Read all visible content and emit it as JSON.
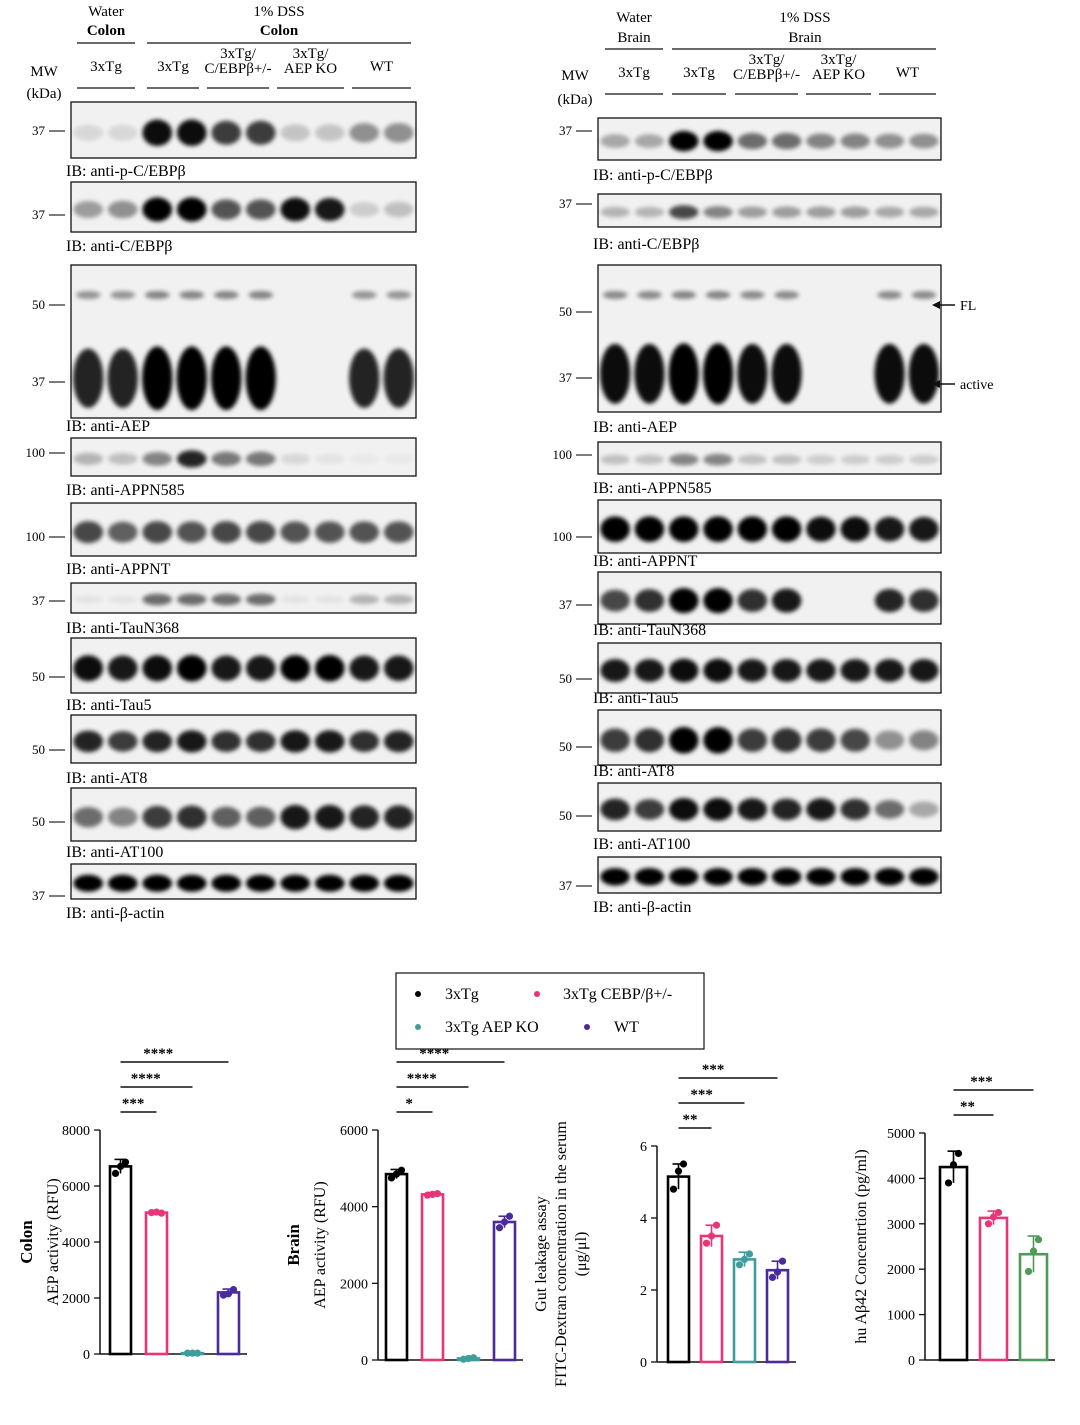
{
  "figure": {
    "colon_panel": {
      "header": {
        "water_label": "Water",
        "water_tissue": "Colon",
        "dss_label": "1% DSS",
        "dss_tissue": "Colon",
        "mw_label": "MW",
        "kda_label": "(kDa)",
        "groups": [
          "3xTg",
          "3xTg",
          "3xTg/\nC/EBPβ+/-",
          "3xTg/\nAEP KO",
          "WT"
        ]
      },
      "blots": [
        {
          "ib": "IB: anti-p-C/EBPβ",
          "markers": [
            "37"
          ],
          "intensities": [
            0.1,
            0.1,
            0.95,
            0.95,
            0.75,
            0.75,
            0.18,
            0.18,
            0.4,
            0.4
          ]
        },
        {
          "ib": "IB: anti-C/EBPβ",
          "markers": [
            "37"
          ],
          "intensities": [
            0.35,
            0.4,
            1.0,
            1.0,
            0.65,
            0.65,
            0.95,
            0.9,
            0.15,
            0.2
          ]
        },
        {
          "ib": "IB: anti-AEP",
          "markers": [
            "50",
            "37"
          ],
          "intensities": [
            0.85,
            0.85,
            1.0,
            1.0,
            1.0,
            1.0,
            0.0,
            0.0,
            0.85,
            0.85
          ]
        },
        {
          "ib": "IB: anti-APPN585",
          "markers": [
            "100"
          ],
          "intensities": [
            0.25,
            0.2,
            0.45,
            0.85,
            0.5,
            0.5,
            0.1,
            0.05,
            0.03,
            0.03
          ]
        },
        {
          "ib": "IB: anti-APPNT",
          "markers": [
            "100"
          ],
          "intensities": [
            0.7,
            0.6,
            0.7,
            0.65,
            0.7,
            0.7,
            0.65,
            0.65,
            0.65,
            0.65
          ]
        },
        {
          "ib": "IB: anti-TauN368",
          "markers": [
            "37"
          ],
          "intensities": [
            0.05,
            0.05,
            0.55,
            0.55,
            0.55,
            0.55,
            0.05,
            0.05,
            0.25,
            0.25
          ]
        },
        {
          "ib": "IB: anti-Tau5",
          "markers": [
            "50"
          ],
          "intensities": [
            0.95,
            0.9,
            0.95,
            1.0,
            0.9,
            0.9,
            1.0,
            1.0,
            0.9,
            0.9
          ]
        },
        {
          "ib": "IB: anti-AT8",
          "markers": [
            "50"
          ],
          "intensities": [
            0.85,
            0.75,
            0.85,
            0.9,
            0.8,
            0.8,
            0.9,
            0.9,
            0.8,
            0.85
          ]
        },
        {
          "ib": "IB: anti-AT100",
          "markers": [
            "50"
          ],
          "intensities": [
            0.55,
            0.45,
            0.75,
            0.8,
            0.6,
            0.6,
            0.9,
            0.9,
            0.85,
            0.85
          ]
        },
        {
          "ib": "IB: anti-β-actin",
          "markers": [
            "37"
          ],
          "intensities": [
            1.0,
            1.0,
            1.0,
            1.0,
            1.0,
            1.0,
            1.0,
            1.0,
            1.0,
            1.0
          ]
        }
      ]
    },
    "brain_panel": {
      "header": {
        "water_label": "Water",
        "water_tissue": "Brain",
        "dss_label": "1% DSS",
        "dss_tissue": "Brain",
        "mw_label": "MW",
        "kda_label": "(kDa)",
        "groups": [
          "3xTg",
          "3xTg",
          "3xTg/\nC/EBPβ+/-",
          "3xTg/\nAEP KO",
          "WT"
        ]
      },
      "blots": [
        {
          "ib": "IB: anti-p-C/EBPβ",
          "markers": [
            "37"
          ],
          "intensities": [
            0.3,
            0.3,
            1.0,
            1.0,
            0.55,
            0.55,
            0.45,
            0.45,
            0.4,
            0.4
          ]
        },
        {
          "ib": "IB: anti-C/EBPβ",
          "markers": [
            "37"
          ],
          "intensities": [
            0.25,
            0.25,
            0.7,
            0.45,
            0.35,
            0.35,
            0.35,
            0.35,
            0.3,
            0.3
          ]
        },
        {
          "ib": "IB: anti-AEP",
          "markers": [
            "50",
            "37"
          ],
          "intensities": [
            0.95,
            0.95,
            1.0,
            1.0,
            0.95,
            0.95,
            0.0,
            0.0,
            0.95,
            0.95
          ]
        },
        {
          "ib": "IB: anti-APPN585",
          "markers": [
            "100"
          ],
          "intensities": [
            0.2,
            0.2,
            0.45,
            0.45,
            0.2,
            0.2,
            0.15,
            0.15,
            0.15,
            0.15
          ]
        },
        {
          "ib": "IB: anti-APPNT",
          "markers": [
            "100"
          ],
          "intensities": [
            1.0,
            1.0,
            1.0,
            1.0,
            1.0,
            1.0,
            0.95,
            0.95,
            0.9,
            0.9
          ]
        },
        {
          "ib": "IB: anti-TauN368",
          "markers": [
            "37"
          ],
          "intensities": [
            0.7,
            0.8,
            1.0,
            1.0,
            0.8,
            0.9,
            0.0,
            0.0,
            0.85,
            0.8
          ]
        },
        {
          "ib": "IB: anti-Tau5",
          "markers": [
            "50"
          ],
          "intensities": [
            0.9,
            0.9,
            0.95,
            0.95,
            0.9,
            0.9,
            0.9,
            0.9,
            0.9,
            0.9
          ]
        },
        {
          "ib": "IB: anti-AT8",
          "markers": [
            "50"
          ],
          "intensities": [
            0.75,
            0.8,
            1.0,
            1.0,
            0.75,
            0.8,
            0.75,
            0.7,
            0.4,
            0.45
          ]
        },
        {
          "ib": "IB: anti-AT100",
          "markers": [
            "50"
          ],
          "intensities": [
            0.85,
            0.75,
            0.95,
            0.95,
            0.9,
            0.85,
            0.9,
            0.8,
            0.55,
            0.3
          ]
        },
        {
          "ib": "IB: anti-β-actin",
          "markers": [
            "37"
          ],
          "intensities": [
            1.0,
            1.0,
            1.0,
            1.0,
            1.0,
            1.0,
            1.0,
            1.0,
            1.0,
            1.0
          ]
        }
      ],
      "annotations": {
        "fl": "FL",
        "active": "active"
      }
    },
    "legend": [
      {
        "label": "3xTg",
        "color": "#000000"
      },
      {
        "label": "3xTg CEBP/β+/-",
        "color": "#e8357a"
      },
      {
        "label": "3xTg AEP KO",
        "color": "#3f9e9b"
      },
      {
        "label": "WT",
        "color": "#4b2a9a"
      }
    ]
  },
  "chart_data": [
    {
      "type": "bar",
      "ylabel_bold": "Colon",
      "ylabel": "AEP activity (RFU)",
      "ylim": [
        0,
        8000
      ],
      "yticks": [
        0,
        2000,
        4000,
        6000,
        8000
      ],
      "categories": [
        "3xTg",
        "3xTg CEBP/β+/-",
        "3xTg AEP KO",
        "WT"
      ],
      "colors": [
        "#000000",
        "#e8357a",
        "#3f9e9b",
        "#4b2a9a"
      ],
      "values": [
        6700,
        5050,
        30,
        2200
      ],
      "errors": [
        250,
        40,
        10,
        120
      ],
      "points": [
        [
          6450,
          6700,
          6850
        ],
        [
          5050,
          5070,
          5030
        ],
        [
          30,
          30,
          30
        ],
        [
          2100,
          2150,
          2300
        ]
      ],
      "significance": [
        {
          "from": 0,
          "to": 1,
          "label": "***"
        },
        {
          "from": 0,
          "to": 2,
          "label": "****"
        },
        {
          "from": 0,
          "to": 3,
          "label": "****"
        }
      ]
    },
    {
      "type": "bar",
      "ylabel_bold": "Brain",
      "ylabel": "AEP activity (RFU)",
      "ylim": [
        0,
        6000
      ],
      "yticks": [
        0,
        2000,
        4000,
        6000
      ],
      "categories": [
        "3xTg",
        "3xTg CEBP/β+/-",
        "3xTg AEP KO",
        "WT"
      ],
      "colors": [
        "#000000",
        "#e8357a",
        "#3f9e9b",
        "#4b2a9a"
      ],
      "values": [
        4850,
        4320,
        40,
        3600
      ],
      "errors": [
        120,
        50,
        30,
        150
      ],
      "points": [
        [
          4750,
          4850,
          4950
        ],
        [
          4300,
          4320,
          4340
        ],
        [
          20,
          40,
          60
        ],
        [
          3450,
          3600,
          3750
        ]
      ],
      "significance": [
        {
          "from": 0,
          "to": 1,
          "label": "*"
        },
        {
          "from": 0,
          "to": 2,
          "label": "****"
        },
        {
          "from": 0,
          "to": 3,
          "label": "****"
        }
      ]
    },
    {
      "type": "bar",
      "ylabel_bold": "",
      "ylabel": "Gut leakage assay\nFITC-Dextran concentration in the serum\n(μg/μl)",
      "ylim": [
        0,
        6
      ],
      "yticks": [
        0,
        2,
        4,
        6
      ],
      "categories": [
        "3xTg",
        "3xTg CEBP/β+/-",
        "3xTg AEP KO",
        "WT"
      ],
      "colors": [
        "#000000",
        "#e8357a",
        "#3f9e9b",
        "#4b2a9a"
      ],
      "values": [
        5.15,
        3.5,
        2.85,
        2.55
      ],
      "errors": [
        0.35,
        0.3,
        0.2,
        0.25
      ],
      "points": [
        [
          4.8,
          5.3,
          5.5
        ],
        [
          3.3,
          3.5,
          3.8
        ],
        [
          2.7,
          2.85,
          3.0
        ],
        [
          2.35,
          2.5,
          2.8
        ]
      ],
      "significance": [
        {
          "from": 0,
          "to": 1,
          "label": "**"
        },
        {
          "from": 0,
          "to": 2,
          "label": "***"
        },
        {
          "from": 0,
          "to": 3,
          "label": "***"
        }
      ]
    },
    {
      "type": "bar",
      "ylabel_bold": "",
      "ylabel": "hu Aβ42 Concentrtion (pg/ml)",
      "ylim": [
        0,
        5000
      ],
      "yticks": [
        0,
        1000,
        2000,
        3000,
        4000,
        5000
      ],
      "categories": [
        "3xTg",
        "3xTg CEBP/β+/-",
        "3xTg AEP KO"
      ],
      "colors": [
        "#000000",
        "#e8357a",
        "#4e9a58"
      ],
      "values": [
        4250,
        3130,
        2330
      ],
      "errors": [
        350,
        150,
        400
      ],
      "points": [
        [
          3900,
          4300,
          4550
        ],
        [
          3000,
          3150,
          3250
        ],
        [
          1950,
          2400,
          2650
        ]
      ],
      "significance": [
        {
          "from": 0,
          "to": 1,
          "label": "**"
        },
        {
          "from": 0,
          "to": 2,
          "label": "***"
        }
      ]
    }
  ]
}
